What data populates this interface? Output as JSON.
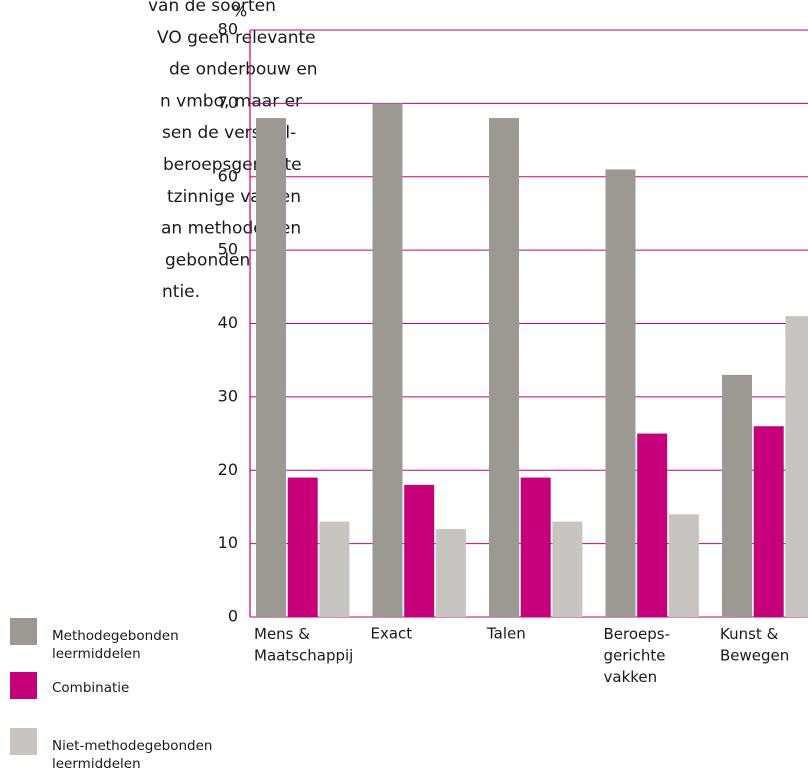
{
  "text_lines": [
    "van de soorten",
    "VO geen relevante",
    "de onderbouw en",
    "n vmbo, maar er",
    "sen de verschil-",
    "beroepsgerichte",
    "tzinnige vakken",
    "an methoden en",
    "gebonden",
    "ntie."
  ],
  "chart_data": {
    "type": "bar",
    "y_unit": "%",
    "categories": [
      "Mens &\nMaatschappij",
      "Exact",
      "Talen",
      "Beroeps-\ngerichte\nvakken",
      "Kunst &\nBewegen"
    ],
    "series": [
      {
        "name": "Methodegebonden\nleermiddelen",
        "color": "#9c9993",
        "values": [
          68,
          70,
          68,
          61,
          33
        ]
      },
      {
        "name": "Combinatie",
        "color": "#c5007a",
        "values": [
          19,
          18,
          19,
          25,
          26
        ]
      },
      {
        "name": "Niet-methodegebonden\nleermiddelen",
        "color": "#c8c5c0",
        "values": [
          13,
          12,
          13,
          14,
          41
        ]
      }
    ],
    "ylim": [
      0,
      80
    ],
    "yticks": [
      0,
      10,
      20,
      30,
      40,
      50,
      60,
      70,
      80
    ],
    "grid": true,
    "grid_color": "#c5007a"
  }
}
